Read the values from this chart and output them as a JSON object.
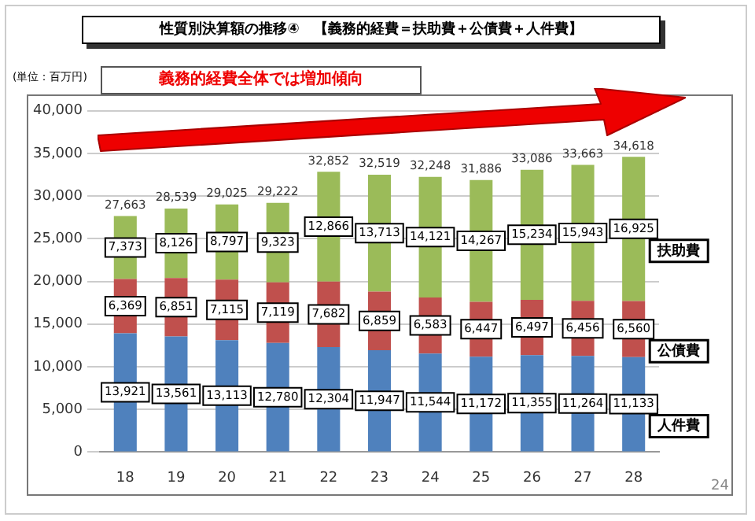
{
  "chart_data": {
    "type": "bar",
    "title": "性質別決算額の推移④　【義務的経費＝扶助費＋公債費＋人件費】",
    "annotations": [
      "(単位：百万円)",
      "義務的経費全体では増加傾向",
      "24"
    ],
    "categories": [
      "18",
      "19",
      "20",
      "21",
      "22",
      "23",
      "24",
      "25",
      "26",
      "27",
      "28"
    ],
    "stacked": true,
    "series": [
      {
        "name": "人件費",
        "color": "#4f81bd",
        "values": [
          13921,
          13561,
          13113,
          12780,
          12304,
          11947,
          11544,
          11172,
          11355,
          11264,
          11133
        ],
        "value_labels": [
          "13,921",
          "13,561",
          "13,113",
          "12,780",
          "12,304",
          "11,947",
          "11,544",
          "11,172",
          "11,355",
          "11,264",
          "11,133"
        ]
      },
      {
        "name": "公債費",
        "color": "#c0504d",
        "values": [
          6369,
          6851,
          7115,
          7119,
          7682,
          6859,
          6583,
          6447,
          6497,
          6456,
          6560
        ],
        "value_labels": [
          "6,369",
          "6,851",
          "7,115",
          "7,119",
          "7,682",
          "6,859",
          "6,583",
          "6,447",
          "6,497",
          "6,456",
          "6,560"
        ]
      },
      {
        "name": "扶助費",
        "color": "#9bbb59",
        "values": [
          7373,
          8126,
          8797,
          9323,
          12866,
          13713,
          14121,
          14267,
          15234,
          15943,
          16925
        ],
        "value_labels": [
          "7,373",
          "8,126",
          "8,797",
          "9,323",
          "12,866",
          "13,713",
          "14,121",
          "14,267",
          "15,234",
          "15,943",
          "16,925"
        ]
      }
    ],
    "totals": [
      "27,663",
      "28,539",
      "29,025",
      "29,222",
      "32,852",
      "32,519",
      "32,248",
      "31,886",
      "33,086",
      "33,663",
      "34,618"
    ],
    "ylim": [
      0,
      40000
    ],
    "yticks": [
      {
        "value": 0,
        "label": "0"
      },
      {
        "value": 5000,
        "label": "5,000"
      },
      {
        "value": 10000,
        "label": "10,000"
      },
      {
        "value": 15000,
        "label": "15,000"
      },
      {
        "value": 20000,
        "label": "20,000"
      },
      {
        "value": 25000,
        "label": "25,000"
      },
      {
        "value": 30000,
        "label": "30,000"
      },
      {
        "value": 35000,
        "label": "35,000"
      },
      {
        "value": 40000,
        "label": "40,000"
      }
    ],
    "grid": "y",
    "legend": false
  }
}
